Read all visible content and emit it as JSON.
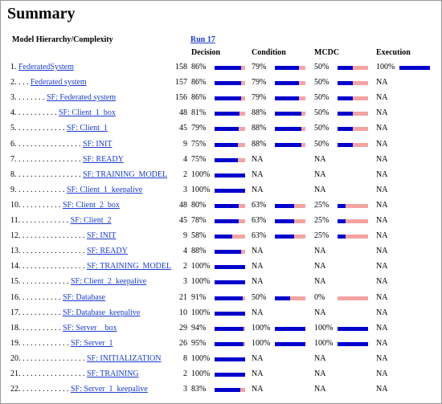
{
  "header": {
    "title": "Summary"
  },
  "table": {
    "columns": {
      "hierarchy": "Model Hierarchy/Complexity",
      "run": "Run 17",
      "decision": "Decision",
      "condition": "Condition",
      "mcdc": "MCDC",
      "execution": "Execution"
    },
    "rows": [
      {
        "number": "1.",
        "dots": "",
        "name": "FederatedSystem",
        "complexity": 158,
        "decision": {
          "value": 86,
          "label": "86%"
        },
        "condition": {
          "value": 79,
          "label": "79%"
        },
        "mcdc": {
          "value": 50,
          "label": "50%"
        },
        "execution": {
          "value": 100,
          "label": "100%"
        }
      },
      {
        "number": "2.",
        "dots": ". . .",
        "name": "Federated system",
        "complexity": 157,
        "decision": {
          "value": 86,
          "label": "86%"
        },
        "condition": {
          "value": 79,
          "label": "79%"
        },
        "mcdc": {
          "value": 50,
          "label": "50%"
        },
        "execution": "NA"
      },
      {
        "number": "3.",
        "dots": ". . . . . . .",
        "name": "SF: Federated system",
        "complexity": 156,
        "decision": {
          "value": 86,
          "label": "86%"
        },
        "condition": {
          "value": 79,
          "label": "79%"
        },
        "mcdc": {
          "value": 50,
          "label": "50%"
        },
        "execution": "NA"
      },
      {
        "number": "4.",
        "dots": ". . . . . . . . . .",
        "name": "SF: Client_1_box",
        "complexity": 48,
        "decision": {
          "value": 81,
          "label": "81%"
        },
        "condition": {
          "value": 88,
          "label": "88%"
        },
        "mcdc": {
          "value": 50,
          "label": "50%"
        },
        "execution": "NA"
      },
      {
        "number": "5.",
        "dots": ". . . . . . . . . . . .",
        "name": "SF: Client_1",
        "complexity": 45,
        "decision": {
          "value": 79,
          "label": "79%"
        },
        "condition": {
          "value": 88,
          "label": "88%"
        },
        "mcdc": {
          "value": 50,
          "label": "50%"
        },
        "execution": "NA"
      },
      {
        "number": "6.",
        "dots": ". . . . . . . . . . . . . . . .",
        "name": "SF: INIT",
        "complexity": 9,
        "decision": {
          "value": 75,
          "label": "75%"
        },
        "condition": {
          "value": 88,
          "label": "88%"
        },
        "mcdc": {
          "value": 50,
          "label": "50%"
        },
        "execution": "NA"
      },
      {
        "number": "7.",
        "dots": ". . . . . . . . . . . . . . . .",
        "name": "SF: READY",
        "complexity": 4,
        "decision": {
          "value": 75,
          "label": "75%"
        },
        "condition": "NA",
        "mcdc": "NA",
        "execution": "NA"
      },
      {
        "number": "8.",
        "dots": ". . . . . . . . . . . . . . . .",
        "name": "SF: TRAINING_MODEL",
        "complexity": 2,
        "decision": {
          "value": 100,
          "label": "100%"
        },
        "condition": "NA",
        "mcdc": "NA",
        "execution": "NA"
      },
      {
        "number": "9.",
        "dots": ". . . . . . . . . . . .",
        "name": "SF: Client_1_keepalive",
        "complexity": 3,
        "decision": {
          "value": 100,
          "label": "100%"
        },
        "condition": "NA",
        "mcdc": "NA",
        "execution": "NA"
      },
      {
        "number": "10.",
        "dots": ". . . . . . . . . .",
        "name": "SF: Client_2_box",
        "complexity": 48,
        "decision": {
          "value": 80,
          "label": "80%"
        },
        "condition": {
          "value": 63,
          "label": "63%"
        },
        "mcdc": {
          "value": 25,
          "label": "25%"
        },
        "execution": "NA"
      },
      {
        "number": "11.",
        "dots": ". . . . . . . . . . . .",
        "name": "SF: Client_2",
        "complexity": 45,
        "decision": {
          "value": 78,
          "label": "78%"
        },
        "condition": {
          "value": 63,
          "label": "63%"
        },
        "mcdc": {
          "value": 25,
          "label": "25%"
        },
        "execution": "NA"
      },
      {
        "number": "12.",
        "dots": ". . . . . . . . . . . . . . . .",
        "name": "SF: INIT",
        "complexity": 9,
        "decision": {
          "value": 58,
          "label": "58%"
        },
        "condition": {
          "value": 63,
          "label": "63%"
        },
        "mcdc": {
          "value": 25,
          "label": "25%"
        },
        "execution": "NA"
      },
      {
        "number": "13.",
        "dots": ". . . . . . . . . . . . . . . .",
        "name": "SF: READY",
        "complexity": 4,
        "decision": {
          "value": 88,
          "label": "88%"
        },
        "condition": "NA",
        "mcdc": "NA",
        "execution": "NA"
      },
      {
        "number": "14.",
        "dots": ". . . . . . . . . . . . . . . .",
        "name": "SF: TRAINING_MODEL",
        "complexity": 2,
        "decision": {
          "value": 100,
          "label": "100%"
        },
        "condition": "NA",
        "mcdc": "NA",
        "execution": "NA"
      },
      {
        "number": "15.",
        "dots": ". . . . . . . . . . . .",
        "name": "SF: Client_2_keepalive",
        "complexity": 3,
        "decision": {
          "value": 100,
          "label": "100%"
        },
        "condition": "NA",
        "mcdc": "NA",
        "execution": "NA"
      },
      {
        "number": "16.",
        "dots": ". . . . . . . . . .",
        "name": "SF: Database",
        "complexity": 21,
        "decision": {
          "value": 91,
          "label": "91%"
        },
        "condition": {
          "value": 50,
          "label": "50%"
        },
        "mcdc": {
          "value": 0,
          "label": "0%"
        },
        "execution": "NA"
      },
      {
        "number": "17.",
        "dots": ". . . . . . . . . .",
        "name": "SF: Database_keepalive",
        "complexity": 10,
        "decision": {
          "value": 100,
          "label": "100%"
        },
        "condition": "NA",
        "mcdc": "NA",
        "execution": "NA"
      },
      {
        "number": "18.",
        "dots": ". . . . . . . . . .",
        "name": "SF: Server__box",
        "complexity": 29,
        "decision": {
          "value": 94,
          "label": "94%"
        },
        "condition": {
          "value": 100,
          "label": "100%"
        },
        "mcdc": {
          "value": 100,
          "label": "100%"
        },
        "execution": "NA"
      },
      {
        "number": "19.",
        "dots": ". . . . . . . . . . . .",
        "name": "SF: Server_1",
        "complexity": 26,
        "decision": {
          "value": 95,
          "label": "95%"
        },
        "condition": {
          "value": 100,
          "label": "100%"
        },
        "mcdc": {
          "value": 100,
          "label": "100%"
        },
        "execution": "NA"
      },
      {
        "number": "20.",
        "dots": ". . . . . . . . . . . . . . . .",
        "name": "SF: INITIALIZATION",
        "complexity": 8,
        "decision": {
          "value": 100,
          "label": "100%"
        },
        "condition": "NA",
        "mcdc": "NA",
        "execution": "NA"
      },
      {
        "number": "21.",
        "dots": ". . . . . . . . . . . . . . . .",
        "name": "SF: TRAINING",
        "complexity": 2,
        "decision": {
          "value": 100,
          "label": "100%"
        },
        "condition": "NA",
        "mcdc": "NA",
        "execution": "NA"
      },
      {
        "number": "22.",
        "dots": ". . . . . . . . . . . .",
        "name": "SF: Server_1_keepalive",
        "complexity": 3,
        "decision": {
          "value": 83,
          "label": "83%"
        },
        "condition": "NA",
        "mcdc": "NA",
        "execution": "NA"
      }
    ]
  }
}
